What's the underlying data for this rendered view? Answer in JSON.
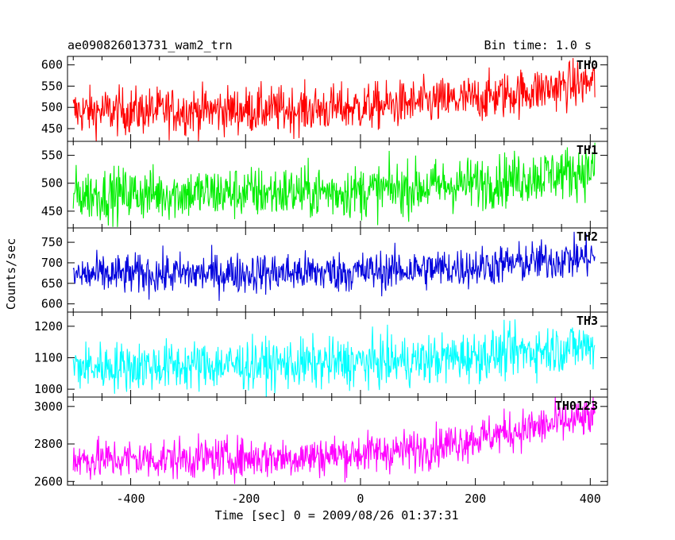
{
  "header": {
    "title": "ae090826013731_wam2_trn",
    "bin_time": "Bin time: 1.0 s"
  },
  "chart_data": {
    "type": "line",
    "title": "ae090826013731_wam2_trn",
    "subtitle": "Bin time: 1.0 s",
    "xlabel": "Time [sec] 0 = 2009/08/26 01:37:31",
    "ylabel": "Counts/sec",
    "xlim": [
      -510,
      430
    ],
    "x_ticks": [
      -400,
      -200,
      0,
      200,
      400
    ],
    "x_range": [
      -500,
      408
    ],
    "grid": false,
    "series": [
      {
        "name": "TH0",
        "color": "#ff0000",
        "ylim": [
          420,
          620
        ],
        "y_ticks": [
          450,
          500,
          550,
          600
        ],
        "trend": [
          [
            -500,
            490
          ],
          [
            -100,
            495
          ],
          [
            0,
            500
          ],
          [
            200,
            520
          ],
          [
            408,
            560
          ]
        ],
        "noise": 28
      },
      {
        "name": "TH1",
        "color": "#00ee00",
        "ylim": [
          420,
          575
        ],
        "y_ticks": [
          450,
          500,
          550
        ],
        "trend": [
          [
            -500,
            480
          ],
          [
            0,
            485
          ],
          [
            200,
            500
          ],
          [
            408,
            525
          ]
        ],
        "noise": 24
      },
      {
        "name": "TH2",
        "color": "#0000dd",
        "ylim": [
          580,
          785
        ],
        "y_ticks": [
          600,
          650,
          700,
          750
        ],
        "trend": [
          [
            -500,
            670
          ],
          [
            0,
            678
          ],
          [
            200,
            690
          ],
          [
            408,
            715
          ]
        ],
        "noise": 25
      },
      {
        "name": "TH3",
        "color": "#00ffff",
        "ylim": [
          975,
          1245
        ],
        "y_ticks": [
          1000,
          1100,
          1200
        ],
        "trend": [
          [
            -500,
            1070
          ],
          [
            -100,
            1080
          ],
          [
            100,
            1090
          ],
          [
            408,
            1140
          ]
        ],
        "noise": 40
      },
      {
        "name": "TH0123",
        "color": "#ff00ff",
        "ylim": [
          2580,
          3050
        ],
        "y_ticks": [
          2600,
          2800,
          3000
        ],
        "trend": [
          [
            -500,
            2715
          ],
          [
            -100,
            2730
          ],
          [
            100,
            2770
          ],
          [
            250,
            2860
          ],
          [
            408,
            2940
          ]
        ],
        "noise": 55
      }
    ]
  }
}
